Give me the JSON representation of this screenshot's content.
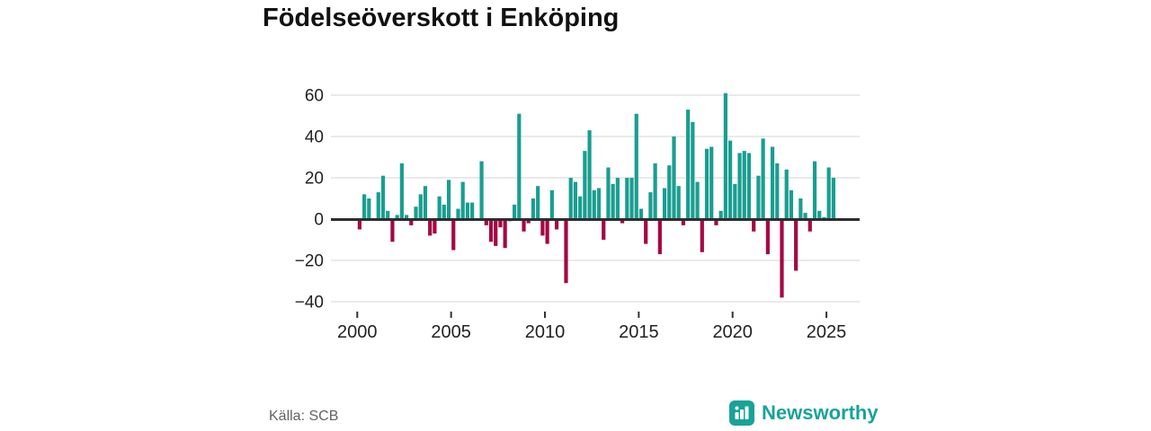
{
  "title": "Födelseöverskott i Enköping",
  "source": {
    "label": "Källa: SCB"
  },
  "brand": {
    "name": "Newsworthy",
    "color": "#18a398"
  },
  "colors": {
    "positive_bar": "#1a9e91",
    "negative_bar": "#a40845",
    "gridline": "#dedede",
    "zero_line": "#2d2d2d",
    "tick_mark": "#333333",
    "axis_text": "#222222",
    "title_text": "#111111",
    "source_text": "#636363",
    "background": "#ffffff"
  },
  "chart_data": {
    "type": "bar",
    "title": "Födelseöverskott i Enköping",
    "xlabel": "",
    "ylabel": "",
    "frequency": "quarterly",
    "start": "2000-Q1",
    "end": "2025-Q2",
    "y_ticks": [
      60,
      40,
      20,
      0,
      -20,
      -40
    ],
    "x_ticks": [
      2000,
      2005,
      2010,
      2015,
      2020,
      2025
    ],
    "ylim": [
      -44,
      65
    ],
    "grid": true,
    "legend": "none",
    "values_by_year": {
      "2000": [
        -5,
        12,
        10,
        0
      ],
      "2001": [
        13,
        21,
        4,
        -11
      ],
      "2002": [
        2,
        27,
        2,
        -3
      ],
      "2003": [
        6,
        12,
        16,
        -8
      ],
      "2004": [
        -7,
        11,
        7,
        19
      ],
      "2005": [
        -15,
        5,
        18,
        8
      ],
      "2006": [
        8,
        0,
        28,
        -3
      ],
      "2007": [
        -11,
        -13,
        -4,
        -14
      ],
      "2008": [
        -1,
        7,
        51,
        -6
      ],
      "2009": [
        -2,
        10,
        16,
        -8
      ],
      "2010": [
        -12,
        14,
        -5,
        0
      ],
      "2011": [
        -31,
        20,
        18,
        11
      ],
      "2012": [
        33,
        43,
        14,
        15
      ],
      "2013": [
        -10,
        25,
        17,
        20
      ],
      "2014": [
        -2,
        20,
        20,
        51
      ],
      "2015": [
        5,
        -12,
        13,
        27
      ],
      "2016": [
        -17,
        15,
        26,
        40
      ],
      "2017": [
        16,
        -3,
        53,
        47
      ],
      "2018": [
        18,
        -16,
        34,
        35
      ],
      "2019": [
        -3,
        4,
        61,
        38
      ],
      "2020": [
        17,
        32,
        33,
        32
      ],
      "2021": [
        -6,
        21,
        39,
        -17
      ],
      "2022": [
        35,
        27,
        -38,
        24
      ],
      "2023": [
        14,
        -25,
        10,
        3
      ],
      "2024": [
        -6,
        28,
        4,
        1
      ],
      "2025": [
        25,
        20
      ]
    }
  }
}
